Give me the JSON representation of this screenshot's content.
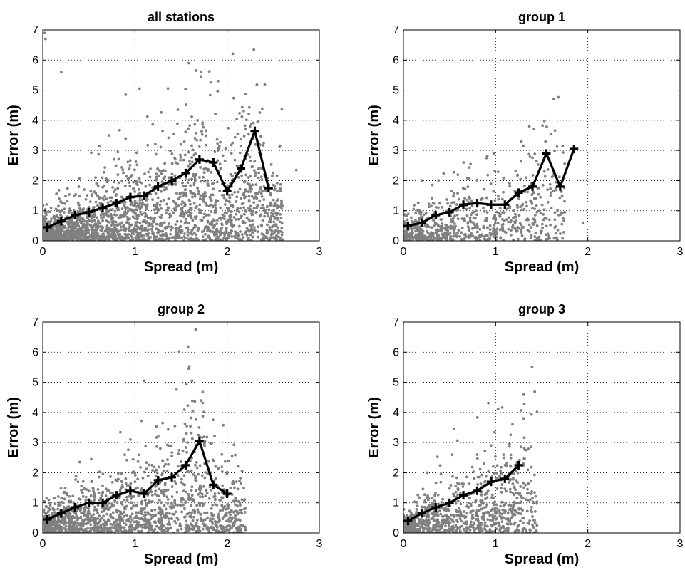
{
  "chart_data": [
    {
      "type": "scatter",
      "title": "all stations",
      "xlabel": "Spread (m)",
      "ylabel": "Error (m)",
      "xlim": [
        0,
        3
      ],
      "ylim": [
        0,
        7
      ],
      "xticks": [
        "0",
        "1",
        "2",
        "3"
      ],
      "yticks": [
        "0",
        "1",
        "2",
        "3",
        "4",
        "5",
        "6",
        "7"
      ],
      "grid": true,
      "scatter_color": "#808080",
      "line_color": "#000000",
      "mean_curve": {
        "x": [
          0.05,
          0.2,
          0.35,
          0.5,
          0.65,
          0.8,
          0.95,
          1.1,
          1.25,
          1.4,
          1.55,
          1.7,
          1.85,
          2.0,
          2.15,
          2.3,
          2.45
        ],
        "y": [
          0.45,
          0.65,
          0.85,
          0.95,
          1.1,
          1.25,
          1.45,
          1.5,
          1.8,
          2.0,
          2.25,
          2.7,
          2.6,
          1.65,
          2.4,
          3.65,
          1.75
        ]
      },
      "scatter": {
        "points": 2200,
        "x_max": 2.6,
        "outliers": [
          [
            0.02,
            6.9
          ],
          [
            0.03,
            6.7
          ],
          [
            0.2,
            5.6
          ],
          [
            0.72,
            3.5
          ],
          [
            0.9,
            4.85
          ],
          [
            1.05,
            5.05
          ],
          [
            1.3,
            3.65
          ],
          [
            1.5,
            3.2
          ],
          [
            1.9,
            3.0
          ],
          [
            2.4,
            1.8
          ],
          [
            2.75,
            2.35
          ],
          [
            2.2,
            1.7
          ]
        ]
      }
    },
    {
      "type": "scatter",
      "title": "group 1",
      "xlabel": "Spread (m)",
      "ylabel": "Error (m)",
      "xlim": [
        0,
        3
      ],
      "ylim": [
        0,
        7
      ],
      "xticks": [
        "0",
        "1",
        "2",
        "3"
      ],
      "yticks": [
        "0",
        "1",
        "2",
        "3",
        "4",
        "5",
        "6",
        "7"
      ],
      "grid": true,
      "scatter_color": "#808080",
      "line_color": "#000000",
      "mean_curve": {
        "x": [
          0.05,
          0.2,
          0.35,
          0.5,
          0.65,
          0.8,
          0.95,
          1.1,
          1.25,
          1.4,
          1.55,
          1.7,
          1.85
        ],
        "y": [
          0.5,
          0.6,
          0.85,
          0.95,
          1.2,
          1.25,
          1.2,
          1.2,
          1.6,
          1.8,
          2.9,
          1.8,
          3.05
        ]
      },
      "scatter": {
        "points": 700,
        "x_max": 1.75,
        "outliers": [
          [
            0.9,
            2.75
          ],
          [
            1.6,
            3.55
          ],
          [
            1.75,
            0.95
          ],
          [
            1.95,
            0.6
          ],
          [
            1.3,
            3.15
          ],
          [
            0.2,
            2.0
          ]
        ]
      }
    },
    {
      "type": "scatter",
      "title": "group 2",
      "xlabel": "Spread (m)",
      "ylabel": "Error (m)",
      "xlim": [
        0,
        3
      ],
      "ylim": [
        0,
        7
      ],
      "xticks": [
        "0",
        "1",
        "2",
        "3"
      ],
      "yticks": [
        "0",
        "1",
        "2",
        "3",
        "4",
        "5",
        "6",
        "7"
      ],
      "grid": true,
      "scatter_color": "#808080",
      "line_color": "#000000",
      "mean_curve": {
        "x": [
          0.05,
          0.2,
          0.35,
          0.5,
          0.65,
          0.8,
          0.95,
          1.1,
          1.25,
          1.4,
          1.55,
          1.7,
          1.85,
          2.0
        ],
        "y": [
          0.45,
          0.65,
          0.85,
          1.0,
          1.0,
          1.25,
          1.4,
          1.3,
          1.75,
          1.85,
          2.25,
          3.05,
          1.6,
          1.3
        ]
      },
      "scatter": {
        "points": 1500,
        "x_max": 2.2,
        "outliers": [
          [
            1.1,
            5.05
          ],
          [
            1.3,
            3.65
          ],
          [
            1.7,
            3.2
          ],
          [
            0.95,
            3.1
          ],
          [
            2.2,
            0.1
          ]
        ]
      }
    },
    {
      "type": "scatter",
      "title": "group 3",
      "xlabel": "Spread (m)",
      "ylabel": "Error (m)",
      "xlim": [
        0,
        3
      ],
      "ylim": [
        0,
        7
      ],
      "xticks": [
        "0",
        "1",
        "2",
        "3"
      ],
      "yticks": [
        "0",
        "1",
        "2",
        "3",
        "4",
        "5",
        "6",
        "7"
      ],
      "grid": true,
      "scatter_color": "#808080",
      "line_color": "#000000",
      "mean_curve": {
        "x": [
          0.05,
          0.2,
          0.35,
          0.5,
          0.65,
          0.8,
          0.95,
          1.1,
          1.25
        ],
        "y": [
          0.4,
          0.65,
          0.85,
          1.0,
          1.25,
          1.4,
          1.7,
          1.8,
          2.25
        ]
      },
      "scatter": {
        "points": 900,
        "x_max": 1.45,
        "outliers": [
          [
            0.55,
            3.45
          ],
          [
            0.8,
            2.6
          ],
          [
            1.15,
            2.95
          ],
          [
            1.4,
            1.15
          ],
          [
            1.3,
            2.3
          ]
        ]
      }
    }
  ]
}
